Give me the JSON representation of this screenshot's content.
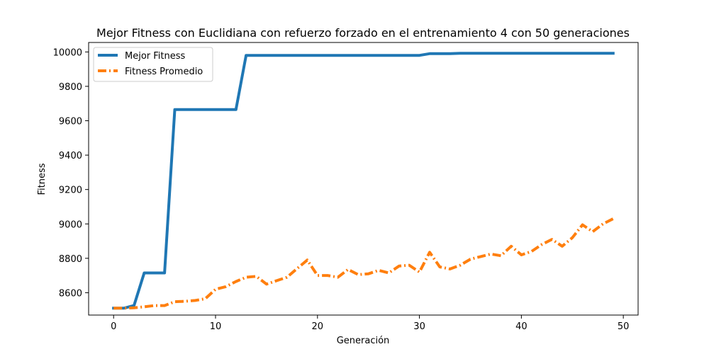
{
  "chart_data": {
    "type": "line",
    "title": "Mejor Fitness con Euclidiana con refuerzo forzado en el entrenamiento 4 con 50 generaciones",
    "xlabel": "Generación",
    "ylabel": "Fitness",
    "xlim": [
      -2.45,
      51.45
    ],
    "ylim": [
      8470,
      10055
    ],
    "xticks": [
      0,
      10,
      20,
      30,
      40,
      50
    ],
    "yticks": [
      8600,
      8800,
      9000,
      9200,
      9400,
      9600,
      9800,
      10000
    ],
    "grid": false,
    "legend_position": "upper left",
    "x": [
      0,
      1,
      2,
      3,
      4,
      5,
      6,
      7,
      8,
      9,
      10,
      11,
      12,
      13,
      14,
      15,
      16,
      17,
      18,
      19,
      20,
      21,
      22,
      23,
      24,
      25,
      26,
      27,
      28,
      29,
      30,
      31,
      32,
      33,
      34,
      35,
      36,
      37,
      38,
      39,
      40,
      41,
      42,
      43,
      44,
      45,
      46,
      47,
      48,
      49
    ],
    "series": [
      {
        "name": "Mejor Fitness",
        "color": "#1f77b4",
        "style": "solid",
        "values": [
          8510,
          8510,
          8525,
          8715,
          8715,
          8715,
          9665,
          9665,
          9665,
          9665,
          9665,
          9665,
          9665,
          9980,
          9980,
          9980,
          9980,
          9980,
          9980,
          9980,
          9980,
          9980,
          9980,
          9980,
          9980,
          9980,
          9980,
          9980,
          9980,
          9980,
          9980,
          9990,
          9990,
          9990,
          9992,
          9992,
          9992,
          9992,
          9992,
          9992,
          9992,
          9992,
          9992,
          9992,
          9992,
          9992,
          9992,
          9992,
          9992,
          9992
        ]
      },
      {
        "name": "Fitness Promedio",
        "color": "#ff7f0e",
        "style": "dashed",
        "values": [
          8510,
          8510,
          8512,
          8518,
          8525,
          8525,
          8548,
          8550,
          8555,
          8565,
          8620,
          8635,
          8665,
          8690,
          8695,
          8650,
          8670,
          8690,
          8740,
          8790,
          8700,
          8700,
          8690,
          8735,
          8705,
          8710,
          8730,
          8715,
          8755,
          8760,
          8720,
          8835,
          8750,
          8738,
          8760,
          8795,
          8810,
          8825,
          8815,
          8870,
          8820,
          8840,
          8880,
          8910,
          8870,
          8920,
          8995,
          8955,
          9000,
          9030
        ]
      }
    ]
  }
}
